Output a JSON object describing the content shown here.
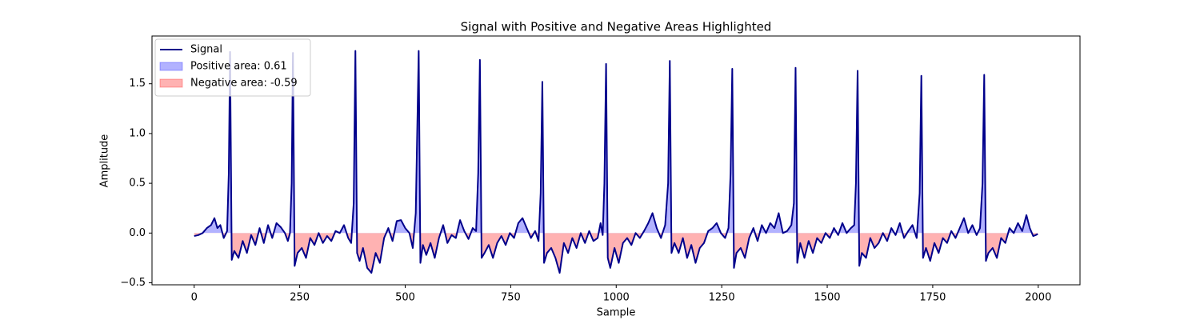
{
  "chart_data": {
    "type": "line",
    "title": "Signal with Positive and Negative Areas Highlighted",
    "x_label": "Sample",
    "y_label": "Amplitude",
    "x": [
      0,
      10,
      20,
      30,
      40,
      48,
      55,
      62,
      70,
      78,
      82,
      85,
      89,
      95,
      105,
      115,
      125,
      135,
      145,
      155,
      165,
      175,
      185,
      195,
      205,
      215,
      222,
      227,
      231,
      234,
      238,
      245,
      255,
      265,
      275,
      285,
      295,
      305,
      315,
      325,
      335,
      345,
      355,
      365,
      372,
      378,
      382,
      386,
      392,
      400,
      410,
      420,
      430,
      440,
      450,
      460,
      470,
      480,
      490,
      500,
      510,
      518,
      525,
      528,
      532,
      536,
      542,
      550,
      560,
      570,
      580,
      590,
      600,
      610,
      620,
      630,
      640,
      650,
      660,
      668,
      673,
      677,
      681,
      688,
      698,
      708,
      718,
      728,
      738,
      748,
      758,
      768,
      778,
      788,
      798,
      808,
      816,
      821,
      825,
      829,
      836,
      846,
      856,
      866,
      876,
      886,
      896,
      906,
      916,
      926,
      936,
      946,
      956,
      963,
      968,
      972,
      976,
      980,
      986,
      996,
      1006,
      1016,
      1026,
      1036,
      1046,
      1056,
      1066,
      1076,
      1086,
      1096,
      1106,
      1116,
      1123,
      1127,
      1131,
      1138,
      1148,
      1158,
      1168,
      1178,
      1188,
      1198,
      1208,
      1218,
      1228,
      1238,
      1248,
      1258,
      1266,
      1271,
      1275,
      1279,
      1285,
      1295,
      1305,
      1315,
      1325,
      1335,
      1345,
      1355,
      1365,
      1375,
      1385,
      1395,
      1405,
      1415,
      1421,
      1425,
      1429,
      1436,
      1446,
      1456,
      1466,
      1476,
      1486,
      1496,
      1506,
      1516,
      1526,
      1536,
      1546,
      1556,
      1564,
      1568,
      1572,
      1576,
      1582,
      1592,
      1602,
      1612,
      1622,
      1632,
      1642,
      1652,
      1662,
      1672,
      1682,
      1692,
      1702,
      1712,
      1719,
      1723,
      1727,
      1734,
      1744,
      1754,
      1764,
      1774,
      1784,
      1794,
      1804,
      1814,
      1824,
      1834,
      1844,
      1854,
      1862,
      1868,
      1872,
      1876,
      1882,
      1892,
      1902,
      1912,
      1922,
      1932,
      1942,
      1952,
      1962,
      1972,
      1980,
      1988,
      1994,
      1999
    ],
    "series": [
      {
        "name": "Signal",
        "color": "#00008b",
        "values": [
          -0.03,
          -0.02,
          0.0,
          0.05,
          0.08,
          0.15,
          0.05,
          0.08,
          -0.05,
          0.02,
          0.6,
          1.82,
          -0.27,
          -0.18,
          -0.25,
          -0.08,
          -0.2,
          -0.02,
          -0.12,
          0.05,
          -0.1,
          0.08,
          -0.05,
          0.1,
          0.06,
          0.0,
          -0.08,
          0.0,
          0.5,
          1.81,
          -0.33,
          -0.2,
          -0.15,
          -0.25,
          -0.05,
          -0.12,
          0.0,
          -0.1,
          -0.03,
          -0.08,
          0.02,
          0.0,
          0.08,
          -0.05,
          -0.1,
          0.3,
          1.83,
          -0.2,
          -0.28,
          -0.15,
          -0.35,
          -0.4,
          -0.2,
          -0.3,
          -0.05,
          0.05,
          -0.08,
          0.12,
          0.13,
          0.05,
          0.0,
          -0.15,
          0.2,
          0.9,
          1.83,
          -0.3,
          -0.12,
          -0.22,
          -0.1,
          -0.25,
          -0.05,
          0.08,
          -0.1,
          -0.02,
          -0.05,
          0.13,
          0.02,
          -0.06,
          0.05,
          0.02,
          0.6,
          1.74,
          -0.25,
          -0.2,
          -0.12,
          -0.25,
          -0.1,
          -0.03,
          -0.12,
          0.0,
          -0.05,
          0.1,
          0.15,
          0.05,
          -0.05,
          0.02,
          -0.08,
          0.4,
          1.52,
          -0.3,
          -0.2,
          -0.15,
          -0.25,
          -0.4,
          -0.1,
          -0.2,
          -0.05,
          -0.15,
          0.0,
          -0.1,
          0.02,
          -0.08,
          -0.05,
          0.1,
          -0.02,
          0.5,
          1.7,
          -0.25,
          -0.35,
          -0.15,
          -0.3,
          -0.1,
          -0.05,
          -0.12,
          0.0,
          -0.05,
          0.02,
          0.1,
          0.2,
          0.05,
          -0.05,
          0.08,
          0.5,
          1.73,
          -0.2,
          -0.1,
          -0.2,
          -0.05,
          -0.25,
          -0.12,
          -0.3,
          -0.15,
          -0.1,
          0.02,
          0.05,
          0.1,
          0.0,
          -0.05,
          0.05,
          0.6,
          1.65,
          -0.35,
          -0.2,
          -0.15,
          -0.25,
          -0.05,
          0.05,
          -0.08,
          0.08,
          0.0,
          0.1,
          0.05,
          0.2,
          0.0,
          0.02,
          0.08,
          0.3,
          1.66,
          -0.3,
          -0.1,
          -0.25,
          -0.08,
          -0.2,
          -0.05,
          -0.1,
          0.0,
          -0.05,
          0.05,
          -0.02,
          0.1,
          0.0,
          0.05,
          0.08,
          0.5,
          1.63,
          -0.33,
          -0.2,
          -0.25,
          -0.05,
          -0.15,
          -0.1,
          0.0,
          -0.08,
          0.05,
          -0.02,
          0.1,
          -0.05,
          0.02,
          0.08,
          -0.05,
          0.4,
          1.58,
          -0.25,
          -0.15,
          -0.28,
          -0.1,
          -0.2,
          -0.05,
          -0.1,
          0.02,
          -0.05,
          0.05,
          0.15,
          0.0,
          0.08,
          -0.02,
          0.05,
          0.5,
          1.59,
          -0.28,
          -0.2,
          -0.15,
          -0.25,
          -0.05,
          -0.1,
          0.05,
          0.0,
          0.1,
          0.02,
          0.18,
          0.05,
          -0.03,
          -0.02,
          -0.01
        ]
      }
    ],
    "areas": [
      {
        "name": "Positive area: 0.61",
        "color": "#0000ff",
        "side": "positive"
      },
      {
        "name": "Negative area: -0.59",
        "color": "#ff0000",
        "side": "negative"
      }
    ],
    "xlim": [
      -99.95,
      2098.95
    ],
    "ylim": [
      -0.52,
      1.98
    ],
    "xticks": [
      0,
      250,
      500,
      750,
      1000,
      1250,
      1500,
      1750,
      2000
    ],
    "yticks": [
      {
        "value": -0.5,
        "label": "−0.5"
      },
      {
        "value": 0,
        "label": "0.0"
      },
      0.5,
      {
        "value": 1,
        "label": "1.0"
      },
      1.5
    ],
    "legend": "upper left"
  }
}
